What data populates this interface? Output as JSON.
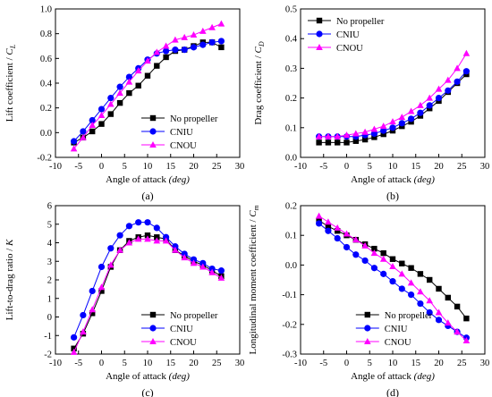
{
  "chart_data": [
    {
      "type": "line",
      "panel_label": "(a)",
      "xlabel": "Angle of attack",
      "xlabel_unit": "(deg)",
      "ylabel": "Lift coefficient / ",
      "ylabel_symbol": "C",
      "ylabel_sub": "L",
      "xlim": [
        -10,
        30
      ],
      "ylim": [
        -0.2,
        1.0
      ],
      "xticks": [
        -10,
        -5,
        0,
        5,
        10,
        15,
        20,
        25,
        30
      ],
      "yticks": [
        -0.2,
        0.0,
        0.2,
        0.4,
        0.6,
        0.8,
        1.0
      ],
      "ytick_labels": [
        "-0.2",
        "0.0",
        "0.2",
        "0.4",
        "0.6",
        "0.8",
        "1.0"
      ],
      "legend_position": "bottom-right",
      "x": [
        -6,
        -4,
        -2,
        0,
        2,
        4,
        6,
        8,
        10,
        12,
        14,
        16,
        18,
        20,
        22,
        24,
        26
      ],
      "series": [
        {
          "name": "No propeller",
          "color": "#000000",
          "marker": "square",
          "values": [
            -0.08,
            -0.04,
            0.01,
            0.07,
            0.15,
            0.24,
            0.32,
            0.38,
            0.46,
            0.54,
            0.61,
            0.66,
            0.67,
            0.7,
            0.73,
            0.73,
            0.69
          ]
        },
        {
          "name": "CNIU",
          "color": "#0000ff",
          "marker": "circle",
          "values": [
            -0.07,
            0.01,
            0.1,
            0.19,
            0.28,
            0.37,
            0.45,
            0.52,
            0.59,
            0.64,
            0.66,
            0.67,
            0.67,
            0.69,
            0.71,
            0.73,
            0.74
          ]
        },
        {
          "name": "CNOU",
          "color": "#ff00ff",
          "marker": "triangle",
          "values": [
            -0.13,
            -0.04,
            0.06,
            0.14,
            0.23,
            0.32,
            0.41,
            0.5,
            0.58,
            0.65,
            0.7,
            0.75,
            0.77,
            0.79,
            0.82,
            0.85,
            0.88
          ]
        }
      ]
    },
    {
      "type": "line",
      "panel_label": "(b)",
      "xlabel": "Angle of attack",
      "xlabel_unit": "(deg)",
      "ylabel": "Drag coefficient / ",
      "ylabel_symbol": "C",
      "ylabel_sub": "D",
      "xlim": [
        -10,
        30
      ],
      "ylim": [
        0.0,
        0.5
      ],
      "xticks": [
        -10,
        -5,
        0,
        5,
        10,
        15,
        20,
        25,
        30
      ],
      "yticks": [
        0.0,
        0.1,
        0.2,
        0.3,
        0.4,
        0.5
      ],
      "ytick_labels": [
        "0.0",
        "0.1",
        "0.2",
        "0.3",
        "0.4",
        "0.5"
      ],
      "legend_position": "top-left",
      "x": [
        -6,
        -4,
        -2,
        0,
        2,
        4,
        6,
        8,
        10,
        12,
        14,
        16,
        18,
        20,
        22,
        24,
        26
      ],
      "series": [
        {
          "name": "No propeller",
          "color": "#000000",
          "marker": "square",
          "values": [
            0.05,
            0.05,
            0.05,
            0.05,
            0.055,
            0.06,
            0.068,
            0.078,
            0.09,
            0.105,
            0.12,
            0.14,
            0.165,
            0.19,
            0.22,
            0.25,
            0.28
          ]
        },
        {
          "name": "CNIU",
          "color": "#0000ff",
          "marker": "circle",
          "values": [
            0.07,
            0.07,
            0.07,
            0.07,
            0.07,
            0.075,
            0.08,
            0.09,
            0.1,
            0.115,
            0.13,
            0.15,
            0.175,
            0.2,
            0.225,
            0.255,
            0.29
          ]
        },
        {
          "name": "CNOU",
          "color": "#ff00ff",
          "marker": "triangle",
          "values": [
            0.07,
            0.07,
            0.07,
            0.075,
            0.08,
            0.085,
            0.095,
            0.105,
            0.12,
            0.135,
            0.155,
            0.175,
            0.2,
            0.23,
            0.26,
            0.3,
            0.35
          ]
        }
      ]
    },
    {
      "type": "line",
      "panel_label": "(c)",
      "xlabel": "Angle of attack",
      "xlabel_unit": "(deg)",
      "ylabel": "Lift-to-drag ratio / ",
      "ylabel_symbol": "K",
      "ylabel_sub": "",
      "xlim": [
        -10,
        30
      ],
      "ylim": [
        -2,
        6
      ],
      "xticks": [
        -10,
        -5,
        0,
        5,
        10,
        15,
        20,
        25,
        30
      ],
      "yticks": [
        -2,
        -1,
        0,
        1,
        2,
        3,
        4,
        5,
        6
      ],
      "ytick_labels": [
        "-2",
        "-1",
        "0",
        "1",
        "2",
        "3",
        "4",
        "5",
        "6"
      ],
      "legend_position": "bottom-right",
      "x": [
        -6,
        -4,
        -2,
        0,
        2,
        4,
        6,
        8,
        10,
        12,
        14,
        16,
        18,
        20,
        22,
        24,
        26
      ],
      "series": [
        {
          "name": "No propeller",
          "color": "#000000",
          "marker": "square",
          "values": [
            -1.7,
            -0.9,
            0.2,
            1.4,
            2.7,
            3.6,
            4.1,
            4.3,
            4.4,
            4.3,
            4.2,
            3.6,
            3.3,
            3.0,
            2.8,
            2.5,
            2.2
          ]
        },
        {
          "name": "CNIU",
          "color": "#0000ff",
          "marker": "circle",
          "values": [
            -1.1,
            0.1,
            1.4,
            2.7,
            3.7,
            4.4,
            4.9,
            5.1,
            5.1,
            4.8,
            4.3,
            3.8,
            3.4,
            3.1,
            2.9,
            2.6,
            2.5
          ]
        },
        {
          "name": "CNOU",
          "color": "#ff00ff",
          "marker": "triangle",
          "values": [
            -1.9,
            -0.8,
            0.4,
            1.6,
            2.8,
            3.6,
            4.0,
            4.2,
            4.2,
            4.1,
            4.1,
            3.6,
            3.2,
            2.9,
            2.7,
            2.4,
            2.1
          ]
        }
      ]
    },
    {
      "type": "line",
      "panel_label": "(d)",
      "xlabel": "Angle of attack",
      "xlabel_unit": "(deg)",
      "ylabel": "Longitudinal moment coefficient / ",
      "ylabel_symbol": "C",
      "ylabel_sub": "m",
      "xlim": [
        -10,
        30
      ],
      "ylim": [
        -0.3,
        0.2
      ],
      "xticks": [
        -10,
        -5,
        0,
        5,
        10,
        15,
        20,
        25,
        30
      ],
      "yticks": [
        -0.3,
        -0.2,
        -0.1,
        0.0,
        0.1,
        0.2
      ],
      "ytick_labels": [
        "-0.3",
        "-0.2",
        "-0.1",
        "0.0",
        "0.1",
        "0.2"
      ],
      "legend_position": "bottom-left",
      "x": [
        -6,
        -4,
        -2,
        0,
        2,
        4,
        6,
        8,
        10,
        12,
        14,
        16,
        18,
        20,
        22,
        24,
        26
      ],
      "series": [
        {
          "name": "No propeller",
          "color": "#000000",
          "marker": "square",
          "values": [
            0.15,
            0.13,
            0.115,
            0.1,
            0.085,
            0.07,
            0.055,
            0.04,
            0.02,
            0.005,
            -0.01,
            -0.03,
            -0.05,
            -0.08,
            -0.11,
            -0.14,
            -0.18
          ]
        },
        {
          "name": "CNIU",
          "color": "#0000ff",
          "marker": "circle",
          "values": [
            0.14,
            0.115,
            0.09,
            0.06,
            0.035,
            0.015,
            -0.01,
            -0.03,
            -0.055,
            -0.08,
            -0.1,
            -0.13,
            -0.16,
            -0.185,
            -0.205,
            -0.225,
            -0.245
          ]
        },
        {
          "name": "CNOU",
          "color": "#ff00ff",
          "marker": "triangle",
          "values": [
            0.165,
            0.145,
            0.125,
            0.105,
            0.085,
            0.065,
            0.04,
            0.02,
            -0.005,
            -0.03,
            -0.06,
            -0.09,
            -0.12,
            -0.16,
            -0.195,
            -0.225,
            -0.255
          ]
        }
      ]
    }
  ]
}
